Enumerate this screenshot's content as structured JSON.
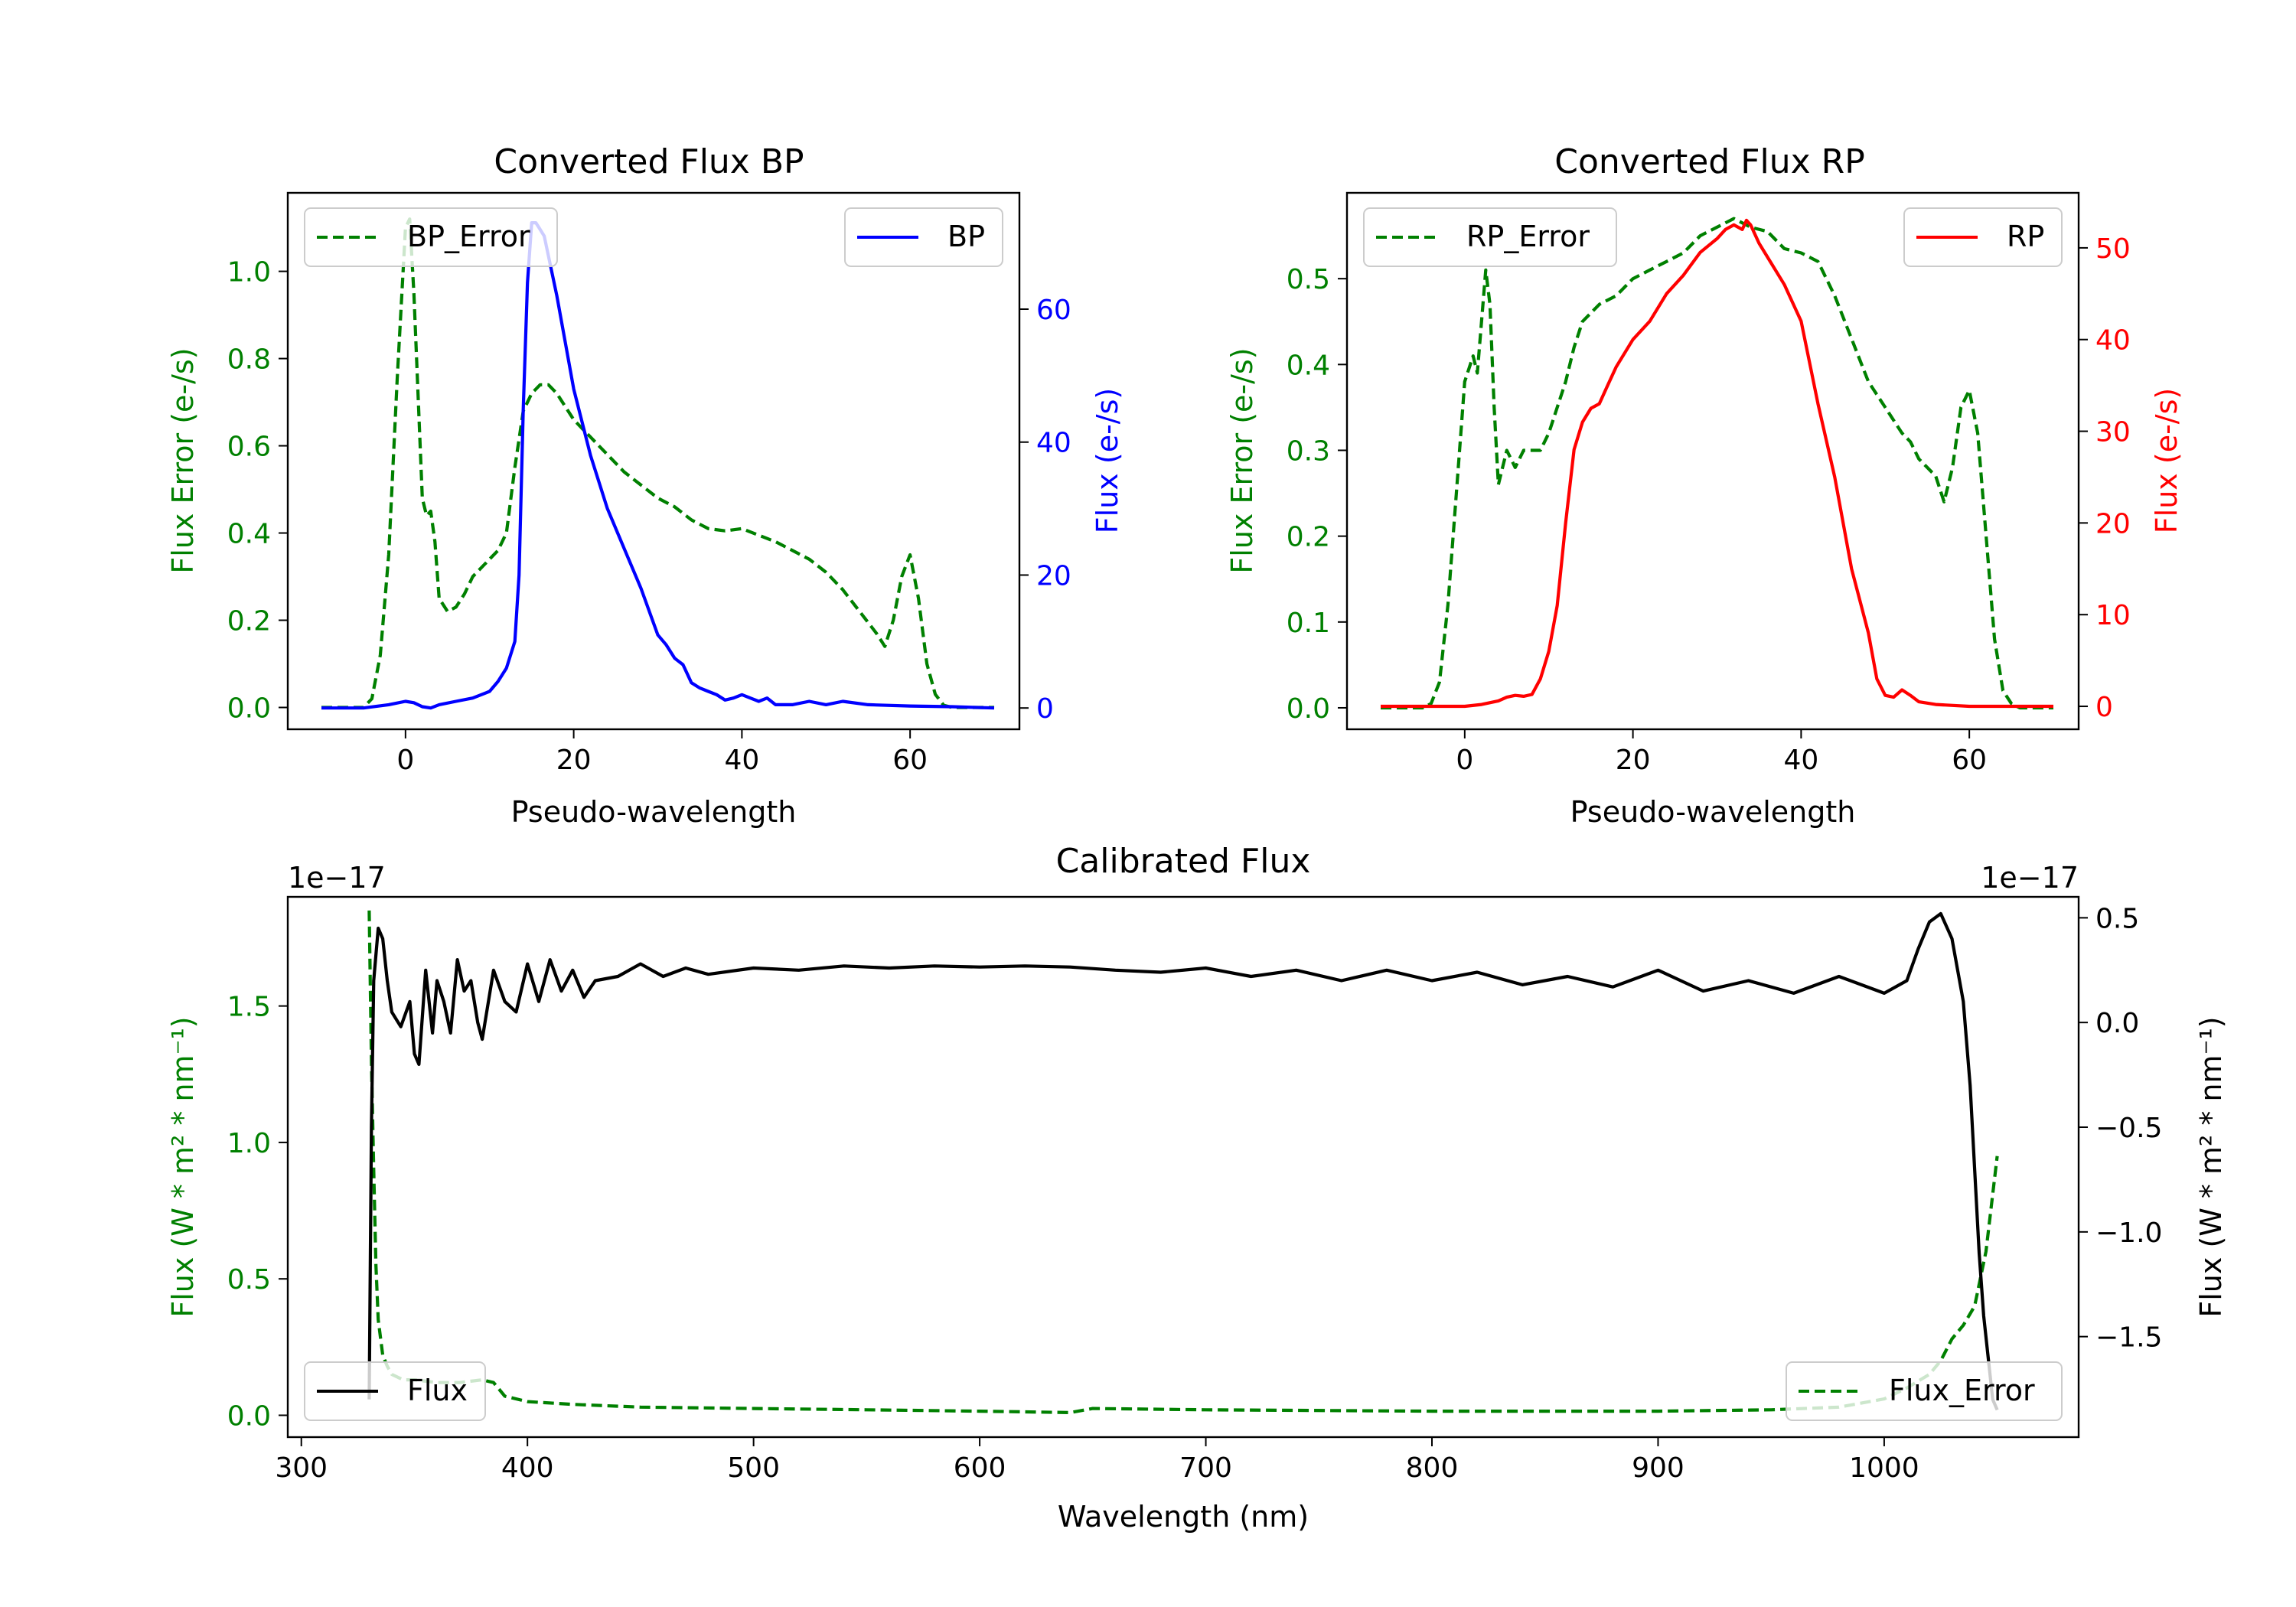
{
  "colors": {
    "bp": "#0000ff",
    "rp": "#ff0000",
    "error": "#008000",
    "flux": "#000000",
    "frame": "#000000"
  },
  "chart_data": [
    {
      "type": "line",
      "title": "Converted Flux BP",
      "xlabel": "Pseudo-wavelength",
      "y1label": "Flux Error (e-/s)",
      "y2label": "Flux (e-/s)",
      "xlim": [
        -14,
        73
      ],
      "y1lim": [
        -0.05,
        1.18
      ],
      "y2lim": [
        -3.2,
        77.5
      ],
      "xticks": [
        0,
        20,
        40,
        60
      ],
      "y1ticks": [
        "0.0",
        "0.2",
        "0.4",
        "0.6",
        "0.8",
        "1.0"
      ],
      "y2ticks": [
        0,
        20,
        40,
        60
      ],
      "legend": [
        {
          "label": "BP_Error",
          "placement": "upper-left",
          "style": "dashed"
        },
        {
          "label": "BP",
          "placement": "upper-right",
          "style": "solid"
        }
      ],
      "series": [
        {
          "name": "BP_Error",
          "axis": "left",
          "color_key": "error",
          "dashed": true,
          "x": [
            -10,
            -5,
            -4,
            -3,
            -2,
            -1,
            0,
            0.5,
            1,
            2,
            2.5,
            3,
            3.5,
            4,
            5,
            6,
            7,
            8,
            9,
            10,
            11,
            12,
            13,
            14,
            15,
            16,
            17,
            18,
            19,
            20,
            22,
            24,
            26,
            28,
            30,
            32,
            34,
            36,
            38,
            40,
            42,
            44,
            46,
            48,
            50,
            52,
            54,
            56,
            57,
            58,
            59,
            60,
            61,
            62,
            63,
            64,
            65,
            67,
            70
          ],
          "y": [
            0,
            0,
            0.02,
            0.12,
            0.35,
            0.75,
            1.1,
            1.12,
            0.95,
            0.48,
            0.44,
            0.45,
            0.38,
            0.25,
            0.22,
            0.23,
            0.26,
            0.3,
            0.32,
            0.34,
            0.36,
            0.4,
            0.55,
            0.68,
            0.72,
            0.74,
            0.74,
            0.72,
            0.69,
            0.66,
            0.62,
            0.58,
            0.54,
            0.51,
            0.48,
            0.46,
            0.43,
            0.41,
            0.405,
            0.41,
            0.395,
            0.38,
            0.36,
            0.34,
            0.31,
            0.27,
            0.22,
            0.17,
            0.14,
            0.2,
            0.3,
            0.35,
            0.25,
            0.1,
            0.03,
            0.005,
            0,
            0,
            0
          ]
        },
        {
          "name": "BP",
          "axis": "right",
          "color_key": "bp",
          "dashed": false,
          "x": [
            -10,
            -5,
            -2,
            0,
            1,
            2,
            3,
            4,
            6,
            8,
            10,
            11,
            12,
            13,
            13.5,
            14,
            14.5,
            15,
            15.5,
            16,
            16.5,
            17,
            18,
            19,
            20,
            22,
            24,
            26,
            28,
            30,
            31,
            32,
            33,
            34,
            35,
            36,
            37,
            38,
            39,
            40,
            41,
            42,
            43,
            44,
            46,
            48,
            50,
            52,
            55,
            60,
            65,
            70
          ],
          "y": [
            0,
            0,
            0.5,
            1,
            0.8,
            0.2,
            0,
            0.5,
            1,
            1.5,
            2.5,
            4,
            6,
            10,
            20,
            45,
            64,
            73,
            73,
            72,
            71,
            68,
            62,
            55,
            48,
            38,
            30,
            24,
            18,
            11,
            9.5,
            7.5,
            6.5,
            3.8,
            3,
            2.5,
            2,
            1.2,
            1.5,
            2,
            1.5,
            1,
            1.5,
            0.5,
            0.5,
            1,
            0.5,
            1,
            0.5,
            0.3,
            0.2,
            0
          ]
        }
      ]
    },
    {
      "type": "line",
      "title": "Converted Flux RP",
      "xlabel": "Pseudo-wavelength",
      "y1label": "Flux Error (e-/s)",
      "y2label": "Flux (e-/s)",
      "xlim": [
        -14,
        73
      ],
      "y1lim": [
        -0.025,
        0.6
      ],
      "y2lim": [
        -2.5,
        56
      ],
      "xticks": [
        0,
        20,
        40,
        60
      ],
      "y1ticks": [
        "0.0",
        "0.1",
        "0.2",
        "0.3",
        "0.4",
        "0.5"
      ],
      "y2ticks": [
        0,
        10,
        20,
        30,
        40,
        50
      ],
      "legend": [
        {
          "label": "RP_Error",
          "placement": "upper-left",
          "style": "dashed"
        },
        {
          "label": "RP",
          "placement": "upper-right",
          "style": "solid"
        }
      ],
      "series": [
        {
          "name": "RP_Error",
          "axis": "left",
          "color_key": "error",
          "dashed": true,
          "x": [
            -10,
            -5,
            -4,
            -3,
            -2,
            -1,
            0,
            1,
            1.5,
            2,
            2.5,
            3,
            3.5,
            4,
            5,
            6,
            7,
            8,
            9,
            10,
            11,
            12,
            13,
            14,
            16,
            18,
            20,
            22,
            24,
            26,
            28,
            30,
            32,
            34,
            36,
            38,
            40,
            42,
            44,
            46,
            48,
            50,
            52,
            53,
            54,
            55,
            56,
            57,
            58,
            59,
            60,
            61,
            62,
            63,
            64,
            65,
            66,
            70
          ],
          "y": [
            0,
            0,
            0.005,
            0.03,
            0.12,
            0.25,
            0.38,
            0.41,
            0.39,
            0.45,
            0.51,
            0.47,
            0.35,
            0.26,
            0.3,
            0.28,
            0.3,
            0.3,
            0.3,
            0.32,
            0.35,
            0.38,
            0.42,
            0.45,
            0.47,
            0.48,
            0.5,
            0.51,
            0.52,
            0.53,
            0.55,
            0.56,
            0.57,
            0.56,
            0.555,
            0.535,
            0.53,
            0.52,
            0.48,
            0.43,
            0.38,
            0.35,
            0.32,
            0.31,
            0.29,
            0.28,
            0.27,
            0.24,
            0.28,
            0.35,
            0.37,
            0.32,
            0.2,
            0.08,
            0.02,
            0.005,
            0,
            0
          ]
        },
        {
          "name": "RP",
          "axis": "right",
          "color_key": "rp",
          "dashed": false,
          "x": [
            -10,
            -5,
            0,
            2,
            4,
            5,
            6,
            7,
            8,
            9,
            10,
            11,
            12,
            13,
            14,
            15,
            16,
            17,
            18,
            20,
            22,
            24,
            26,
            28,
            30,
            31,
            32,
            33,
            33.5,
            34,
            35,
            36,
            38,
            40,
            42,
            44,
            46,
            48,
            49,
            50,
            51,
            52,
            53,
            54,
            56,
            60,
            70
          ],
          "y": [
            0,
            0,
            0,
            0.2,
            0.6,
            1,
            1.2,
            1.1,
            1.3,
            3,
            6,
            11,
            20,
            28,
            31,
            32.5,
            33,
            35,
            37,
            40,
            42,
            45,
            47,
            49.5,
            51,
            52,
            52.5,
            52,
            53,
            52.5,
            50.5,
            49,
            46,
            42,
            33,
            25,
            15,
            8,
            3,
            1.2,
            1,
            1.8,
            1.2,
            0.5,
            0.2,
            0,
            0
          ]
        }
      ]
    },
    {
      "type": "line",
      "title": "Calibrated Flux",
      "xlabel": "Wavelength (nm)",
      "y1label": "Flux (W * m² * nm⁻¹)",
      "y2label": "Flux (W * m² * nm⁻¹)",
      "offset_left": "1e−17",
      "offset_right": "1e−17",
      "xlim": [
        294,
        1086
      ],
      "y1lim": [
        -0.08,
        1.9
      ],
      "y2lim": [
        -1.98,
        0.6
      ],
      "xticks": [
        300,
        400,
        500,
        600,
        700,
        800,
        900,
        1000
      ],
      "y1ticks": [
        "0.0",
        "0.5",
        "1.0",
        "1.5"
      ],
      "y2ticks": [
        "−1.5",
        "−1.0",
        "−0.5",
        "0.0",
        "0.5"
      ],
      "legend": [
        {
          "label": "Flux",
          "placement": "lower-left",
          "style": "solid"
        },
        {
          "label": "Flux_Error",
          "placement": "lower-right",
          "style": "dashed"
        }
      ],
      "series": [
        {
          "name": "Flux_Error",
          "axis": "left",
          "color_key": "error",
          "dashed": true,
          "x": [
            330,
            331,
            332,
            333,
            334,
            336,
            338,
            340,
            345,
            350,
            360,
            370,
            380,
            385,
            390,
            400,
            420,
            450,
            500,
            550,
            600,
            640,
            650,
            700,
            800,
            900,
            950,
            980,
            1000,
            1010,
            1020,
            1025,
            1030,
            1035,
            1040,
            1045,
            1050
          ],
          "y": [
            1.85,
            1.3,
            0.9,
            0.55,
            0.35,
            0.22,
            0.18,
            0.15,
            0.13,
            0.13,
            0.12,
            0.12,
            0.13,
            0.12,
            0.07,
            0.05,
            0.04,
            0.03,
            0.025,
            0.02,
            0.015,
            0.01,
            0.025,
            0.02,
            0.015,
            0.015,
            0.02,
            0.03,
            0.06,
            0.1,
            0.15,
            0.2,
            0.28,
            0.33,
            0.4,
            0.6,
            0.95
          ]
        },
        {
          "name": "Flux",
          "axis": "right",
          "color_key": "flux",
          "dashed": false,
          "x": [
            330,
            331,
            332,
            334,
            336,
            338,
            340,
            344,
            348,
            350,
            352,
            355,
            358,
            360,
            363,
            366,
            369,
            372,
            375,
            378,
            380,
            385,
            390,
            395,
            400,
            405,
            410,
            415,
            420,
            425,
            430,
            440,
            450,
            460,
            470,
            480,
            500,
            520,
            540,
            560,
            580,
            600,
            620,
            640,
            660,
            680,
            700,
            720,
            740,
            760,
            780,
            800,
            820,
            840,
            860,
            880,
            900,
            920,
            940,
            960,
            980,
            1000,
            1010,
            1015,
            1020,
            1025,
            1030,
            1035,
            1038,
            1040,
            1042,
            1044,
            1046,
            1048,
            1050
          ],
          "y": [
            -1.8,
            -0.5,
            0.2,
            0.45,
            0.4,
            0.2,
            0.05,
            -0.02,
            0.1,
            -0.15,
            -0.2,
            0.25,
            -0.05,
            0.2,
            0.1,
            -0.05,
            0.3,
            0.15,
            0.2,
            0.0,
            -0.08,
            0.25,
            0.1,
            0.05,
            0.28,
            0.1,
            0.3,
            0.15,
            0.25,
            0.12,
            0.2,
            0.22,
            0.28,
            0.22,
            0.26,
            0.23,
            0.26,
            0.25,
            0.27,
            0.26,
            0.27,
            0.265,
            0.27,
            0.265,
            0.25,
            0.24,
            0.26,
            0.22,
            0.25,
            0.2,
            0.25,
            0.2,
            0.24,
            0.18,
            0.22,
            0.17,
            0.25,
            0.15,
            0.2,
            0.14,
            0.22,
            0.14,
            0.2,
            0.35,
            0.48,
            0.52,
            0.4,
            0.1,
            -0.3,
            -0.7,
            -1.1,
            -1.4,
            -1.6,
            -1.8,
            -1.85
          ]
        }
      ]
    }
  ]
}
